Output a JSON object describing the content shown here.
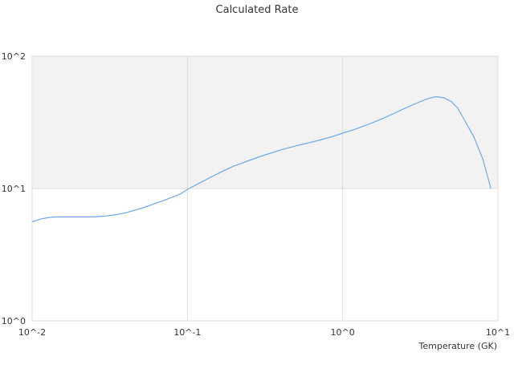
{
  "chart_data": {
    "type": "line",
    "title": "Calculated Rate",
    "xlabel": "Temperature (GK)",
    "ylabel": "",
    "xscale": "log",
    "yscale": "log",
    "xlim": [
      0.01,
      10
    ],
    "ylim": [
      1,
      100
    ],
    "x_ticks": [
      "10^-2",
      "10^-1",
      "10^0",
      "10^1"
    ],
    "y_ticks": [
      "10^0",
      "10^1",
      "10^2"
    ],
    "grid": true,
    "legend": "none",
    "shaded_band": {
      "from": 10,
      "to": 100,
      "color": "#f2f2f2"
    },
    "series": [
      {
        "color": "#6aaae8",
        "x": [
          0.01,
          0.0115,
          0.013,
          0.0145,
          0.017,
          0.02,
          0.025,
          0.03,
          0.035,
          0.04,
          0.05,
          0.06,
          0.07,
          0.08,
          0.09,
          0.1,
          0.12,
          0.14,
          0.16,
          0.18,
          0.2,
          0.25,
          0.3,
          0.35,
          0.4,
          0.5,
          0.6,
          0.7,
          0.8,
          0.9,
          1.0,
          1.2,
          1.4,
          1.6,
          1.8,
          2.0,
          2.5,
          3.0,
          3.5,
          4.0,
          4.5,
          5.0,
          5.5,
          6.0,
          7.0,
          8.0,
          9.0
        ],
        "y": [
          5.6,
          5.9,
          6.05,
          6.1,
          6.1,
          6.1,
          6.1,
          6.2,
          6.35,
          6.55,
          7.05,
          7.6,
          8.1,
          8.6,
          9.1,
          9.85,
          11.0,
          12.1,
          13.1,
          14.0,
          14.8,
          16.3,
          17.6,
          18.6,
          19.6,
          21.0,
          22.1,
          23.1,
          24.1,
          25.1,
          26.2,
          28.0,
          29.9,
          31.8,
          33.7,
          35.6,
          40.2,
          44.2,
          47.6,
          49.4,
          48.4,
          45.4,
          40.6,
          33.9,
          24.5,
          16.6,
          10.0
        ]
      }
    ]
  }
}
